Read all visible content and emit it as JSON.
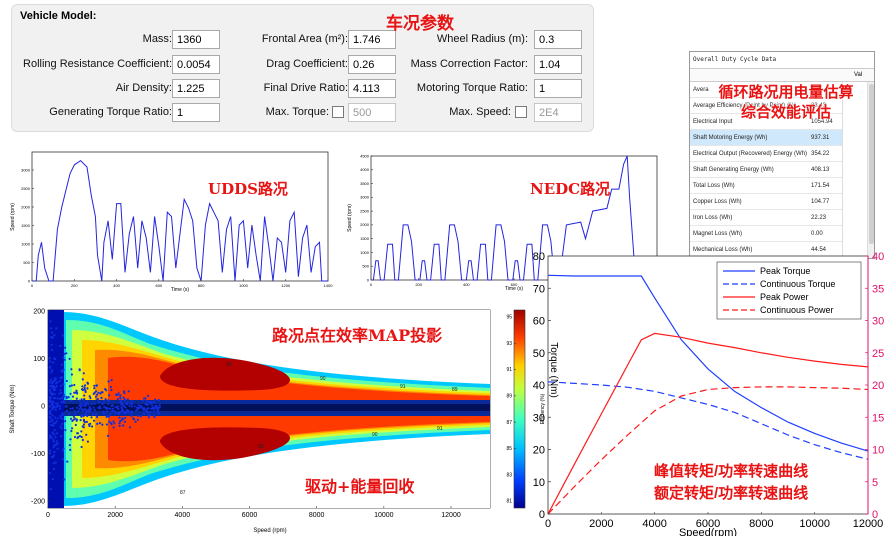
{
  "vehicle_model": {
    "title": "Vehicle Model:",
    "mass": {
      "label": "Mass:",
      "value": "1360"
    },
    "rolling_resistance": {
      "label": "Rolling Resistance Coefficient:",
      "value": "0.0054"
    },
    "air_density": {
      "label": "Air Density:",
      "value": "1.225"
    },
    "generating_torque_ratio": {
      "label": "Generating Torque Ratio:",
      "value": "1"
    },
    "frontal_area": {
      "label": "Frontal Area (m²):",
      "value": "1.746"
    },
    "drag_coefficient": {
      "label": "Drag Coefficient:",
      "value": "0.26"
    },
    "final_drive_ratio": {
      "label": "Final Drive Ratio:",
      "value": "4.113"
    },
    "max_torque": {
      "label": "Max. Torque:",
      "value": "500",
      "checked": false
    },
    "wheel_radius": {
      "label": "Wheel Radius (m):",
      "value": "0.3"
    },
    "mass_correction": {
      "label": "Mass Correction Factor:",
      "value": "1.04"
    },
    "motoring_torque_ratio": {
      "label": "Motoring Torque Ratio:",
      "value": "1"
    },
    "max_speed": {
      "label": "Max. Speed:",
      "value": "2E4",
      "checked": false
    }
  },
  "annotations": {
    "vehicle_params": "车况参数",
    "duty_cycle_eval_1": "循环路况用电量估算",
    "duty_cycle_eval_2": "综合效能评估",
    "udds": "UDDS路况",
    "nedc": "NEDC路况",
    "map_projection": "路况点在效率MAP投影",
    "drive_regen": "驱动+能量回收",
    "curves_1": "峰值转矩/功率转速曲线",
    "curves_2": "额定转矩/功率转速曲线"
  },
  "duty_cycle": {
    "title": "Overall Duty Cycle Data",
    "value_header": "Val",
    "rows": [
      {
        "name": "Average Efficiency (Point by Point) (%)",
        "value": "83.43"
      },
      {
        "name": "Electrical Input",
        "value": "1054.94"
      },
      {
        "name": "Shaft Motoring Energy (Wh)",
        "value": "937.31",
        "highlight": true
      },
      {
        "name": "Electrical Output (Recovered) Energy (Wh)",
        "value": "354.22"
      },
      {
        "name": "Shaft Generating Energy (Wh)",
        "value": "408.13"
      },
      {
        "name": "Total Loss (Wh)",
        "value": "171.54"
      },
      {
        "name": "Copper Loss (Wh)",
        "value": "104.77"
      },
      {
        "name": "Iron Loss (Wh)",
        "value": "22.23"
      },
      {
        "name": "Magnet Loss (Wh)",
        "value": "0.00"
      },
      {
        "name": "Mechanical Loss (Wh)",
        "value": "44.54"
      }
    ]
  },
  "udds_plot": {
    "ylabel": "Speed (rpm)",
    "xlabel": "Time (s)",
    "x_ticks": [
      "0",
      "200",
      "400",
      "600",
      "800",
      "1000",
      "1200",
      "1400"
    ],
    "y_ticks": [
      "0",
      "500",
      "1000",
      "1500",
      "2000",
      "2500",
      "3000"
    ]
  },
  "nedc_plot": {
    "ylabel": "Speed (rpm)",
    "xlabel": "Time (s)",
    "x_ticks": [
      "0",
      "200",
      "400",
      "600",
      "800",
      "1000",
      "1200"
    ],
    "y_ticks": [
      "0",
      "500",
      "1000",
      "1500",
      "2000",
      "2500",
      "3000",
      "3500",
      "4000",
      "4500"
    ]
  },
  "efficiency_map": {
    "ylabel": "Shaft Torque (Nm)",
    "xlabel": "Speed (rpm)",
    "x_ticks": [
      "0",
      "2000",
      "4000",
      "6000",
      "8000",
      "10000",
      "12000"
    ],
    "y_ticks": [
      "-200",
      "-100",
      "0",
      "100",
      "200"
    ],
    "colorbar_label": "Efficiency (%)",
    "colorbar_ticks": [
      "81",
      "83",
      "85",
      "87",
      "89",
      "91",
      "93",
      "95"
    ],
    "contour_labels": [
      "93",
      "90",
      "91",
      "89",
      "87",
      "85"
    ]
  },
  "chart_data": {
    "type": "line",
    "xlabel": "Speed(rpm)",
    "ylabel_left": "Torque (Nm)",
    "x_ticks": [
      "0",
      "2000",
      "4000",
      "6000",
      "8000",
      "10000",
      "12000"
    ],
    "y_left_ticks": [
      "0",
      "10",
      "20",
      "30",
      "40",
      "50",
      "60",
      "70",
      "80"
    ],
    "y_right_ticks": [
      "0",
      "5",
      "10",
      "15",
      "20",
      "25",
      "30",
      "35",
      "40"
    ],
    "xlim": [
      0,
      12000
    ],
    "ylim_left": [
      0,
      80
    ],
    "ylim_right": [
      0,
      40
    ],
    "legend_position": "top-right",
    "series": [
      {
        "name": "Peak Torque",
        "axis": "left",
        "color": "#1f3fff",
        "dash": "solid",
        "x": [
          0,
          1000,
          2000,
          3000,
          3500,
          4000,
          5000,
          6000,
          7000,
          8000,
          9000,
          10000,
          11000,
          12000
        ],
        "y": [
          74,
          73.8,
          73.8,
          73.8,
          73.8,
          67,
          54,
          45,
          38,
          33,
          28.5,
          25,
          22,
          19.5
        ]
      },
      {
        "name": "Continuous Torque",
        "axis": "left",
        "color": "#1f3fff",
        "dash": "dashed",
        "x": [
          0,
          1000,
          2000,
          3000,
          4000,
          5000,
          6000,
          7000,
          8000,
          9000,
          10000,
          11000,
          12000
        ],
        "y": [
          41,
          40.5,
          40,
          39.3,
          38,
          36,
          34,
          31.5,
          28,
          24.5,
          21.5,
          19,
          17
        ]
      },
      {
        "name": "Peak Power",
        "axis": "right",
        "color": "#ff1a1a",
        "dash": "solid",
        "x": [
          0,
          1000,
          2000,
          3000,
          3500,
          4000,
          5000,
          6000,
          7000,
          8000,
          9000,
          10000,
          11000,
          12000
        ],
        "y": [
          0,
          7.8,
          15.5,
          23.2,
          27,
          28,
          27.4,
          26.5,
          25.8,
          25,
          24.3,
          23.7,
          23.2,
          22.8
        ]
      },
      {
        "name": "Continuous Power",
        "axis": "right",
        "color": "#ff1a1a",
        "dash": "dashed",
        "x": [
          0,
          1000,
          2000,
          3000,
          4000,
          5000,
          6000,
          7000,
          8000,
          9000,
          10000,
          11000,
          12000
        ],
        "y": [
          0,
          4.3,
          8.4,
          12.3,
          16,
          18.3,
          19.3,
          19.6,
          19.7,
          19.7,
          19.6,
          19.5,
          19.3
        ]
      }
    ]
  }
}
